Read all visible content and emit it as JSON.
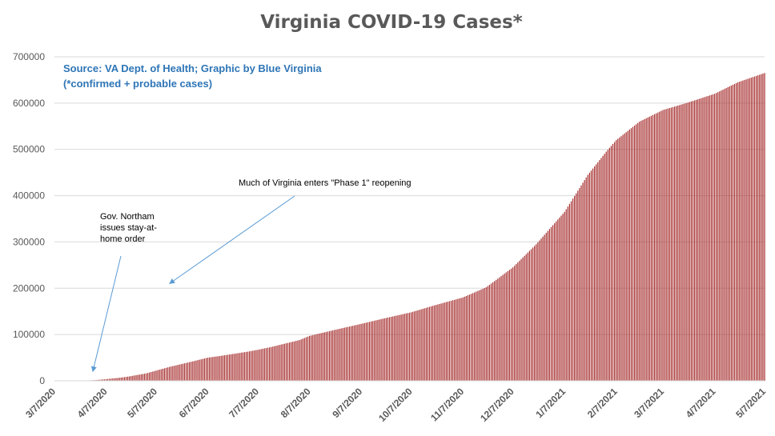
{
  "chart_data": {
    "type": "bar",
    "title": "Virginia COVID-19 Cases*",
    "source_lines": [
      "Source: VA Dept. of Health; Graphic by Blue Virginia",
      "(*confirmed + probable cases)"
    ],
    "x_range": [
      "3/7/2020",
      "5/7/2021"
    ],
    "x_ticks": [
      "3/7/2020",
      "4/7/2020",
      "5/7/2020",
      "6/7/2020",
      "7/7/2020",
      "8/7/2020",
      "9/7/2020",
      "10/7/2020",
      "11/7/2020",
      "12/7/2020",
      "1/7/2021",
      "2/7/2021",
      "3/7/2021",
      "4/7/2021",
      "5/7/2021"
    ],
    "ylim": [
      0,
      700000
    ],
    "y_ticks": [
      0,
      100000,
      200000,
      300000,
      400000,
      500000,
      600000,
      700000
    ],
    "grid": true,
    "bar_color": "#a52a2a",
    "series": [
      {
        "points": [
          [
            "3/7/2020",
            0
          ],
          [
            "3/21/2020",
            150
          ],
          [
            "4/1/2020",
            1500
          ],
          [
            "4/7/2020",
            3600
          ],
          [
            "4/15/2020",
            6500
          ],
          [
            "4/21/2020",
            9500
          ],
          [
            "5/1/2020",
            16000
          ],
          [
            "5/7/2020",
            22000
          ],
          [
            "5/15/2020",
            30000
          ],
          [
            "5/29/2020",
            42000
          ],
          [
            "6/7/2020",
            50000
          ],
          [
            "6/15/2020",
            54000
          ],
          [
            "7/1/2020",
            63000
          ],
          [
            "7/7/2020",
            67000
          ],
          [
            "7/15/2020",
            73000
          ],
          [
            "8/1/2020",
            88000
          ],
          [
            "8/7/2020",
            97000
          ],
          [
            "8/21/2020",
            109000
          ],
          [
            "9/7/2020",
            123000
          ],
          [
            "9/21/2020",
            135000
          ],
          [
            "10/7/2020",
            148000
          ],
          [
            "10/21/2020",
            163000
          ],
          [
            "11/7/2020",
            180000
          ],
          [
            "11/21/2020",
            202000
          ],
          [
            "12/7/2020",
            245000
          ],
          [
            "12/21/2020",
            295000
          ],
          [
            "1/7/2021",
            365000
          ],
          [
            "1/21/2021",
            445000
          ],
          [
            "2/1/2021",
            495000
          ],
          [
            "2/7/2021",
            520000
          ],
          [
            "2/21/2021",
            560000
          ],
          [
            "3/7/2021",
            585000
          ],
          [
            "3/21/2021",
            600000
          ],
          [
            "4/7/2021",
            620000
          ],
          [
            "4/21/2021",
            645000
          ],
          [
            "5/7/2021",
            665000
          ]
        ]
      }
    ],
    "annotations": [
      {
        "lines": [
          "Gov. Northam",
          "issues stay-at-",
          "home order"
        ],
        "arrow_to": [
          "3/30/2020",
          20000
        ]
      },
      {
        "lines": [
          "Much of Virginia enters \"Phase 1\" reopening"
        ],
        "arrow_to": [
          "5/15/2020",
          210000
        ]
      }
    ]
  }
}
